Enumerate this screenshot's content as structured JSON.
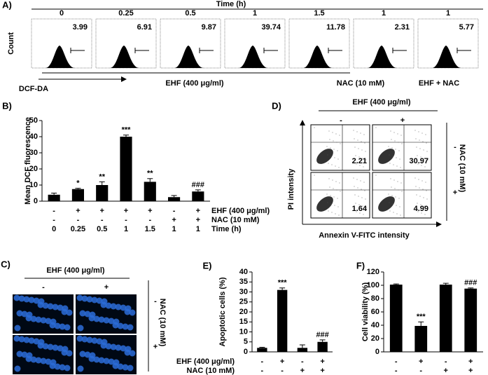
{
  "panels": {
    "a": {
      "label": "A)",
      "header": "Time (h)",
      "times": [
        0,
        0.25,
        0.5,
        1,
        1.5,
        1,
        1
      ],
      "values": [
        3.99,
        6.91,
        9.87,
        39.74,
        11.78,
        2.31,
        5.77
      ],
      "y_label": "Count",
      "x_label": "DCF-DA",
      "groups": [
        "EHF (400 μg/ml)",
        "NAC (10 mM)",
        "EHF + NAC"
      ]
    },
    "c": {
      "label": "C)",
      "header": "EHF (400 μg/ml)",
      "cols": [
        "-",
        "+"
      ],
      "side": "NAC (10 mM)",
      "rows": [
        "-",
        "+"
      ]
    },
    "d": {
      "label": "D)",
      "header": "EHF (400 μg/ml)",
      "cols": [
        "-",
        "+"
      ],
      "side": "NAC (10 mM)",
      "rows": [
        "-",
        "+"
      ],
      "values": [
        [
          2.21,
          30.97
        ],
        [
          1.64,
          4.99
        ]
      ],
      "y_label": "PI intensity",
      "x_label": "Annexin V-FITC intensity"
    }
  },
  "chart_data": [
    {
      "type": "bar",
      "label": "B)",
      "y_label": "Mean DCF fluorescence",
      "values": [
        4,
        7.5,
        10,
        40,
        12,
        2.5,
        6
      ],
      "errors": [
        1,
        0.5,
        2,
        1,
        2,
        1,
        1
      ],
      "annotations": [
        null,
        "*",
        "**",
        "***",
        "**",
        null,
        "###"
      ],
      "color": "#000000",
      "ylim": [
        0,
        50
      ],
      "yticks": [
        0,
        10,
        20,
        30,
        40,
        50
      ],
      "row_labels": [
        "EHF (400 μg/ml)",
        "NAC (10 mM)",
        "Time (h)"
      ],
      "rows": [
        [
          "-",
          "+",
          "+",
          "+",
          "+",
          "-",
          "+"
        ],
        [
          "-",
          "-",
          "-",
          "-",
          "-",
          "+",
          "+"
        ],
        [
          0,
          0.25,
          0.5,
          1,
          1.5,
          1,
          1
        ]
      ]
    },
    {
      "type": "bar",
      "label": "E)",
      "y_label": "Apoptotic cells (%)",
      "values": [
        2,
        31,
        2,
        5
      ],
      "errors": [
        0.3,
        1,
        1.5,
        1
      ],
      "annotations": [
        null,
        "***",
        null,
        "###"
      ],
      "color": "#000000",
      "ylim": [
        0,
        40
      ],
      "yticks": [
        0,
        5,
        10,
        15,
        20,
        25,
        30,
        35,
        40
      ],
      "row_labels": [
        "EHF (400 μg/ml)",
        "NAC (10 mM)"
      ],
      "rows": [
        [
          "-",
          "+",
          "-",
          "+"
        ],
        [
          "-",
          "-",
          "+",
          "+"
        ]
      ]
    },
    {
      "type": "bar",
      "label": "F)",
      "y_label": "Cell viability (%)",
      "values": [
        101,
        39,
        101,
        95
      ],
      "errors": [
        1,
        6,
        2,
        1
      ],
      "annotations": [
        null,
        "***",
        null,
        "###"
      ],
      "color": "#000000",
      "ylim": [
        0,
        120
      ],
      "yticks": [
        0,
        20,
        40,
        60,
        80,
        100,
        120
      ],
      "rows": [
        [
          "-",
          "+",
          "-",
          "+"
        ],
        [
          "-",
          "-",
          "+",
          "+"
        ]
      ]
    }
  ]
}
